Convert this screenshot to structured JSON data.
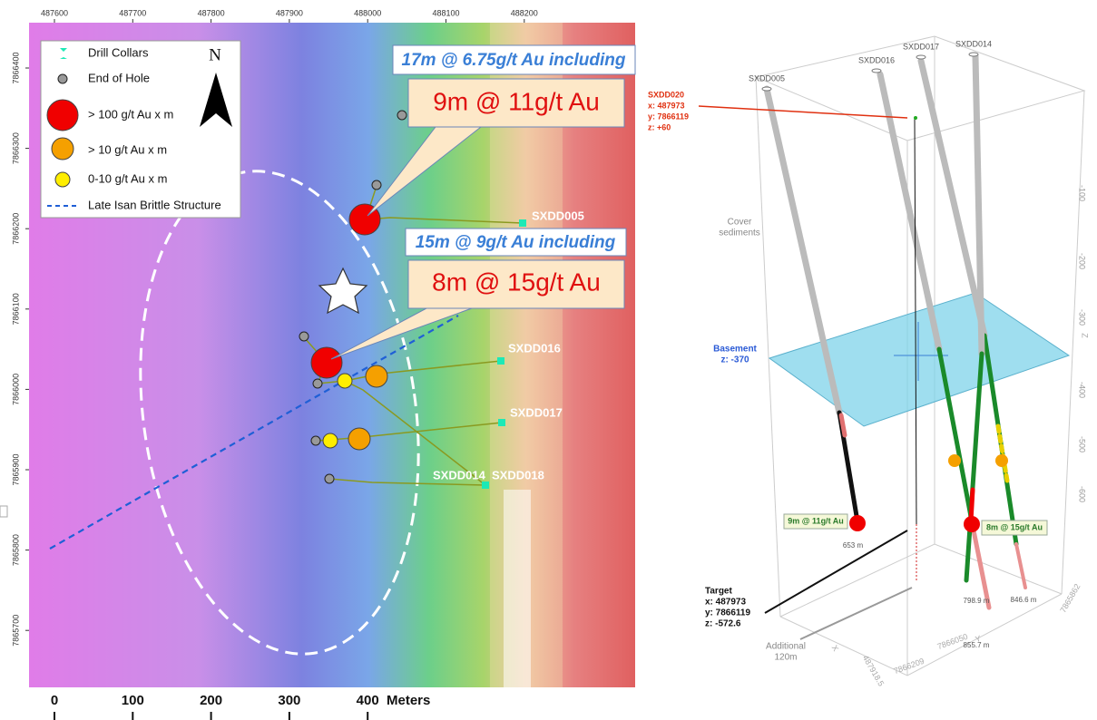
{
  "map": {
    "x_axis_labels": [
      "487600",
      "487700",
      "487800",
      "487900",
      "488000",
      "488100",
      "488200"
    ],
    "y_axis_labels": [
      "7866400",
      "7866300",
      "7866200",
      "7866100",
      "7866000",
      "7865900",
      "7865800",
      "7865700"
    ],
    "legend": {
      "north": "N",
      "items": [
        "Drill Collars",
        "End of Hole",
        "> 100 g/t Au x m",
        "> 10 g/t Au x m",
        "0-10 g/t Au x m",
        "Late Isan Brittle Structure"
      ]
    },
    "callouts": [
      {
        "heading": "17m @ 6.75g/t Au including",
        "highlight": "9m @ 11g/t Au"
      },
      {
        "heading": "15m @ 9g/t Au including",
        "highlight": "8m @ 15g/t Au"
      }
    ],
    "hole_labels": [
      "SXDD005",
      "SXDD016",
      "SXDD017",
      "SXDD014",
      "SXDD018"
    ],
    "scale_bar": {
      "ticks": [
        "0",
        "100",
        "200",
        "300",
        "400"
      ],
      "unit": "Meters"
    }
  },
  "section": {
    "hole_labels": [
      "SXDD005",
      "SXDD016",
      "SXDD017",
      "SXDD014"
    ],
    "new_hole": [
      "SXDD020",
      "x: 487973",
      "y: 7866119",
      "z: +60"
    ],
    "cover": [
      "Cover",
      "sediments"
    ],
    "basement": [
      "Basement",
      "z: -370"
    ],
    "target": [
      "Target",
      "x: 487973",
      "y: 7866119",
      "z: -572.6"
    ],
    "additional": [
      "Additional",
      "120m"
    ],
    "intercepts": [
      "9m @ 11g/t Au",
      "8m @ 15g/t Au"
    ],
    "depths": [
      "653 m",
      "798.9 m",
      "855.7 m",
      "846.6 m"
    ],
    "z_ticks": [
      "-100",
      "-200",
      "-300",
      "-400",
      "-500",
      "-600"
    ],
    "axis_labels": [
      "Z",
      "Y",
      "X",
      "7866209",
      "7866050",
      "7865862",
      "487918.5"
    ]
  }
}
